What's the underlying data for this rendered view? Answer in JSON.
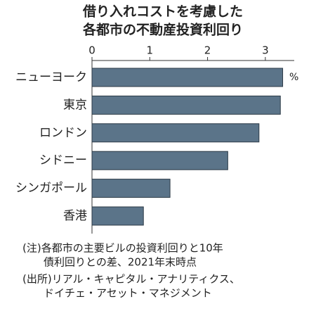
{
  "chart_data": {
    "type": "hbar",
    "title": [
      "借り入れコストを考慮した",
      "各都市の不動産投資利回り"
    ],
    "categories": [
      "ニューヨーク",
      "東京",
      "ロンドン",
      "シドニー",
      "シンガポール",
      "香港"
    ],
    "values": [
      3.3,
      3.26,
      2.89,
      2.35,
      1.35,
      0.89
    ],
    "unit": "%",
    "color": "#5b7489",
    "xlim": [
      0,
      3.5
    ],
    "xticks": [
      0,
      1,
      2,
      3
    ],
    "notes": [
      "(注)各都市の主要ビルの投資利回りと10年",
      "　　債利回りとの差、2021年末時点",
      "(出所)リアル・キャピタル・アナリティクス、",
      "　　ドイチェ・アセット・マネジメント"
    ]
  }
}
